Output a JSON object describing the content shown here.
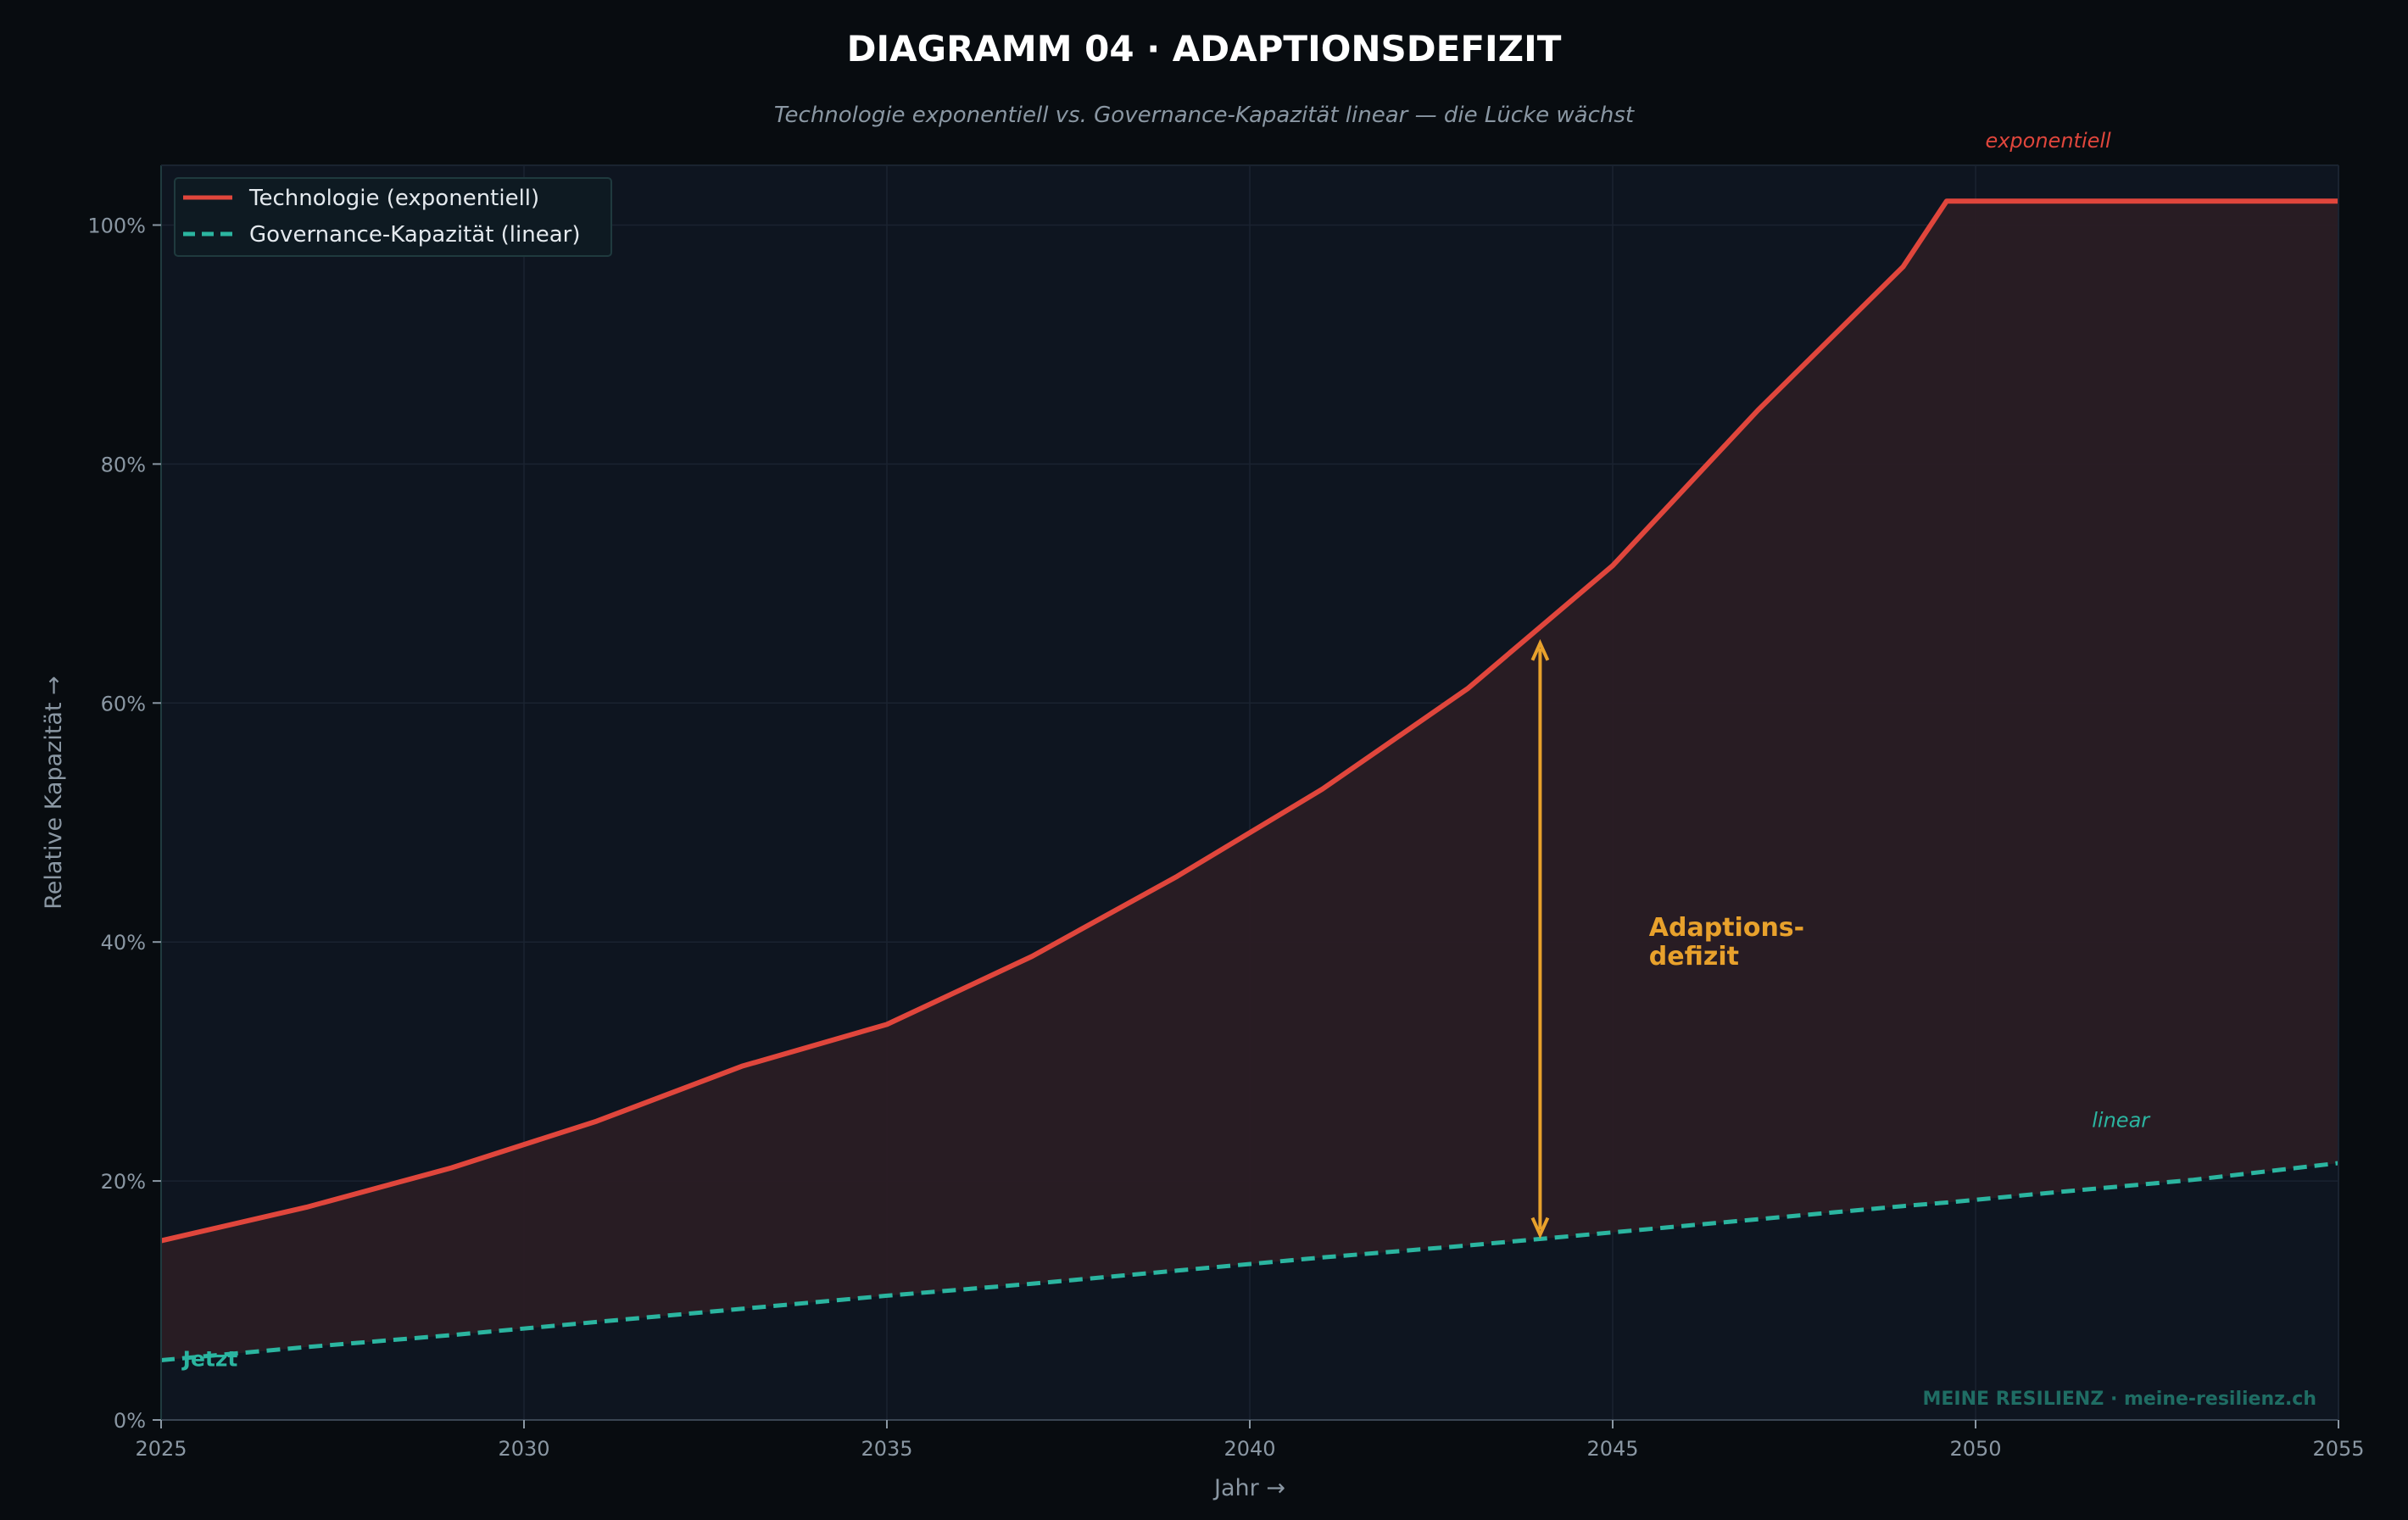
{
  "title": "DIAGRAMM 04 · ADAPTIONSDEFIZIT",
  "subtitle": "Technologie exponentiell vs. Governance-Kapazität linear — die Lücke wächst",
  "xlabel": "Jahr  →",
  "ylabel": "Relative Kapazität  →",
  "watermark": "MEINE RESILIENZ · meine-resilienz.ch",
  "colors": {
    "background": "#080c10",
    "plot_background": "#0e1520",
    "technology": "#e0463c",
    "governance": "#2bb5a0",
    "gap_arrow": "#e8a12c",
    "gap_fill": "#2a1c24",
    "text_muted": "#8a97a3",
    "title": "#ffffff",
    "watermark": "#1f6d64"
  },
  "chart_data": {
    "type": "line",
    "title": "DIAGRAMM 04 · ADAPTIONSDEFIZIT",
    "subtitle": "Technologie exponentiell vs. Governance-Kapazität linear — die Lücke wächst",
    "xlabel": "Jahr  →",
    "ylabel": "Relative Kapazität  →",
    "xlim": [
      2025,
      2055
    ],
    "ylim": [
      0,
      105
    ],
    "x_ticks": [
      2025,
      2030,
      2035,
      2040,
      2045,
      2050,
      2055
    ],
    "y_ticks": [
      0,
      20,
      40,
      60,
      80,
      100
    ],
    "y_tick_labels": [
      "0%",
      "20%",
      "40%",
      "60%",
      "80%",
      "100%"
    ],
    "grid": true,
    "legend_position": "top-left",
    "x": [
      2025,
      2027,
      2029,
      2031,
      2033,
      2035,
      2037,
      2039,
      2041,
      2043,
      2045,
      2047,
      2049,
      2049.6,
      2051,
      2053,
      2055
    ],
    "series": [
      {
        "name": "Technologie (exponentiell)",
        "style": "solid",
        "color": "#e0463c",
        "values": [
          15,
          17.8,
          21.1,
          25,
          29.6,
          33.1,
          38.8,
          45.5,
          52.8,
          61.2,
          71.5,
          84.5,
          96.5,
          102,
          102,
          102,
          102
        ]
      },
      {
        "name": "Governance-Kapazität (linear)",
        "style": "dashed",
        "color": "#2bb5a0",
        "values": [
          5,
          6.1,
          7.1,
          8.2,
          9.3,
          10.4,
          11.4,
          12.5,
          13.6,
          14.6,
          15.7,
          16.8,
          17.9,
          18.2,
          19,
          20.1,
          21.5
        ]
      }
    ],
    "annotations": [
      {
        "text": "exponentiell",
        "x": 2051,
        "y": 106.5,
        "color": "#e0463c"
      },
      {
        "text": "linear",
        "x": 2052,
        "y": 24.5,
        "color": "#2bb5a0"
      },
      {
        "text": "Jetzt",
        "x": 2025.3,
        "y": 4.5,
        "color": "#2bb5a0"
      }
    ],
    "gap_annotation": {
      "label_lines": [
        "Adaptions-",
        "defizit"
      ],
      "x": 2044,
      "y_from": 15.5,
      "y_to": 65,
      "label_x": 2045.5,
      "label_y": 40
    },
    "now_marker_x": 2025
  }
}
